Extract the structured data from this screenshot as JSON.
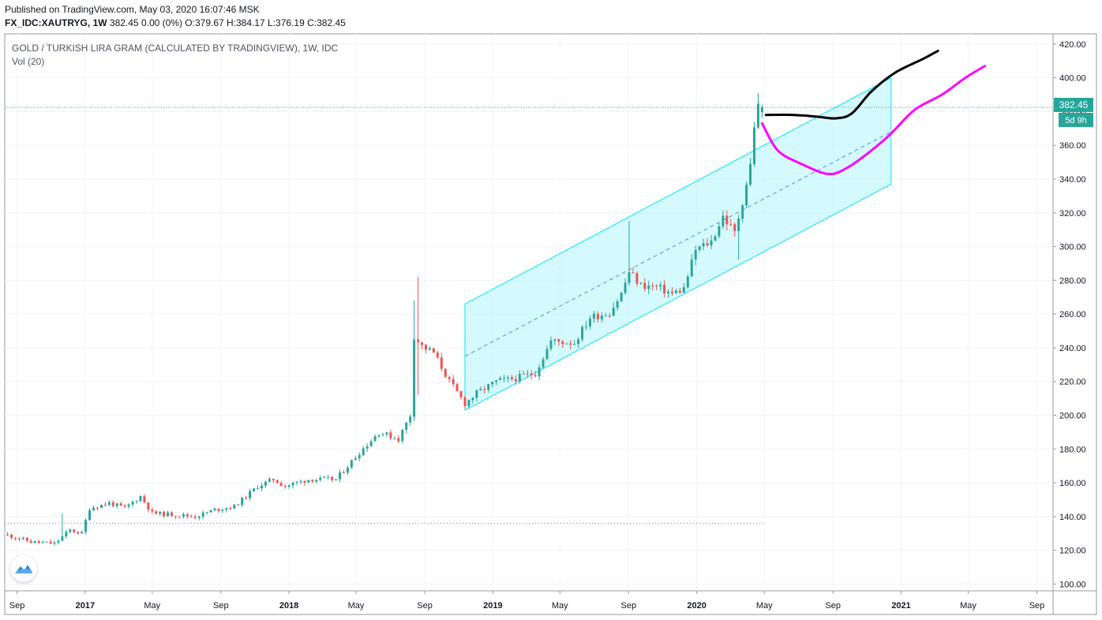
{
  "header": {
    "published": "Published on TradingView.com, May 03, 2020 16:07:46 MSK",
    "symbol": "FX_IDC:XAUTRYG, 1W",
    "quote": "382.45 0.00 (0%) O:379.67 H:384.17 L:376.19 C:382.45"
  },
  "legend": {
    "title": "GOLD / TURKISH LIRA GRAM (CALCULATED BY TRADINGVIEW), 1W, IDC",
    "volume": "Vol (20)"
  },
  "price_label": {
    "value": "382.45",
    "countdown": "5d 9h"
  },
  "colors": {
    "up": "#26a69a",
    "down": "#ef5350",
    "channel": "#00e5ff",
    "channel_fill": "#b2f5fb",
    "magenta": "#ff00ff",
    "black": "#000000",
    "grid": "#f0f3fa",
    "axis_text": "#131722",
    "price_line": "#26a69a"
  },
  "icons": {
    "logo": "tradingview-cloud-icon"
  },
  "chart_data": {
    "type": "candlestick",
    "ylim": [
      96,
      426
    ],
    "y_ticks": [
      100,
      120,
      140,
      160,
      180,
      200,
      220,
      240,
      260,
      280,
      300,
      320,
      340,
      360,
      380,
      400,
      420
    ],
    "y_tick_labels": [
      "100.00",
      "120.00",
      "140.00",
      "160.00",
      "180.00",
      "200.00",
      "220.00",
      "240.00",
      "260.00",
      "280.00",
      "300.00",
      "320.00",
      "340.00",
      "360.00",
      "380.00",
      "400.00",
      "420.00"
    ],
    "x_range": [
      "2016-08-10",
      "2021-09-30"
    ],
    "x_ticks": [
      {
        "date": "2016-09-01",
        "label": "Sep",
        "bold": false
      },
      {
        "date": "2017-01-01",
        "label": "2017",
        "bold": true
      },
      {
        "date": "2017-05-01",
        "label": "May",
        "bold": false
      },
      {
        "date": "2017-09-01",
        "label": "Sep",
        "bold": false
      },
      {
        "date": "2018-01-01",
        "label": "2018",
        "bold": true
      },
      {
        "date": "2018-05-01",
        "label": "May",
        "bold": false
      },
      {
        "date": "2018-09-01",
        "label": "Sep",
        "bold": false
      },
      {
        "date": "2019-01-01",
        "label": "2019",
        "bold": true
      },
      {
        "date": "2019-05-01",
        "label": "May",
        "bold": false
      },
      {
        "date": "2019-09-01",
        "label": "Sep",
        "bold": false
      },
      {
        "date": "2020-01-01",
        "label": "2020",
        "bold": true
      },
      {
        "date": "2020-05-01",
        "label": "May",
        "bold": false
      },
      {
        "date": "2020-09-01",
        "label": "Sep",
        "bold": false
      },
      {
        "date": "2021-01-01",
        "label": "2021",
        "bold": true
      },
      {
        "date": "2021-05-01",
        "label": "May",
        "bold": false
      },
      {
        "date": "2021-09-01",
        "label": "Sep",
        "bold": false
      }
    ],
    "last_price": 382.45,
    "last_ohlc": {
      "o": 379.67,
      "h": 384.17,
      "l": 376.19,
      "c": 382.45
    },
    "first_candle": "2016-08-15",
    "close_path": [
      [
        "2016-08-15",
        129
      ],
      [
        "2016-09-26",
        125
      ],
      [
        "2016-11-07",
        124
      ],
      [
        "2016-12-05",
        132
      ],
      [
        "2016-12-26",
        130
      ],
      [
        "2017-01-09",
        145
      ],
      [
        "2017-02-13",
        148
      ],
      [
        "2017-03-13",
        145
      ],
      [
        "2017-04-10",
        152
      ],
      [
        "2017-05-01",
        142
      ],
      [
        "2017-06-12",
        141
      ],
      [
        "2017-07-17",
        140
      ],
      [
        "2017-08-21",
        144
      ],
      [
        "2017-09-25",
        146
      ],
      [
        "2017-11-06",
        158
      ],
      [
        "2017-12-04",
        162
      ],
      [
        "2017-12-25",
        158
      ],
      [
        "2018-02-05",
        162
      ],
      [
        "2018-03-26",
        162
      ],
      [
        "2018-05-07",
        178
      ],
      [
        "2018-06-11",
        190
      ],
      [
        "2018-07-16",
        186
      ],
      [
        "2018-08-06",
        200
      ],
      [
        "2018-08-13",
        247
      ],
      [
        "2018-08-27",
        241
      ],
      [
        "2018-09-17",
        237
      ],
      [
        "2018-10-15",
        220
      ],
      [
        "2018-11-12",
        207
      ],
      [
        "2018-12-03",
        213
      ],
      [
        "2019-01-07",
        220
      ],
      [
        "2019-02-11",
        222
      ],
      [
        "2019-03-18",
        225
      ],
      [
        "2019-04-15",
        244
      ],
      [
        "2019-05-27",
        243
      ],
      [
        "2019-06-24",
        258
      ],
      [
        "2019-07-29",
        261
      ],
      [
        "2019-08-19",
        272
      ],
      [
        "2019-09-02",
        285
      ],
      [
        "2019-09-23",
        277
      ],
      [
        "2019-10-21",
        276
      ],
      [
        "2019-11-18",
        272
      ],
      [
        "2019-12-09",
        275
      ],
      [
        "2019-12-30",
        298
      ],
      [
        "2020-01-27",
        303
      ],
      [
        "2020-02-17",
        318
      ],
      [
        "2020-03-09",
        308
      ],
      [
        "2020-03-23",
        327
      ],
      [
        "2020-04-06",
        348
      ],
      [
        "2020-04-13",
        372
      ],
      [
        "2020-04-20",
        383
      ],
      [
        "2020-04-27",
        382.45
      ]
    ],
    "spikes": [
      {
        "date": "2016-11-21",
        "h": 142
      },
      {
        "date": "2018-08-13",
        "h": 268
      },
      {
        "date": "2018-08-20",
        "h": 282,
        "l": 212
      },
      {
        "date": "2019-09-02",
        "h": 315
      },
      {
        "date": "2020-03-16",
        "l": 292
      },
      {
        "date": "2020-04-20",
        "h": 391
      }
    ],
    "regression_channel": {
      "start": "2018-11-12",
      "end": "2020-12-14",
      "upper": [
        266,
        400
      ],
      "mid": [
        235,
        368
      ],
      "lower": [
        203,
        337
      ]
    },
    "dotted_reference": {
      "value": 136,
      "start": "2016-08-10",
      "end": "2020-05-01"
    },
    "projection_black": [
      [
        "2020-05-04",
        378
      ],
      [
        "2020-06-22",
        378
      ],
      [
        "2020-08-03",
        377
      ],
      [
        "2020-09-07",
        376
      ],
      [
        "2020-10-05",
        379
      ],
      [
        "2020-11-09",
        392
      ],
      [
        "2020-12-21",
        403
      ],
      [
        "2021-02-08",
        411
      ],
      [
        "2021-03-08",
        416
      ]
    ],
    "projection_magenta": [
      [
        "2020-04-27",
        373
      ],
      [
        "2020-05-25",
        357
      ],
      [
        "2020-07-06",
        349
      ],
      [
        "2020-08-24",
        343
      ],
      [
        "2020-09-28",
        347
      ],
      [
        "2020-11-09",
        357
      ],
      [
        "2020-12-14",
        367
      ],
      [
        "2021-01-25",
        381
      ],
      [
        "2021-03-15",
        390
      ],
      [
        "2021-04-26",
        400
      ],
      [
        "2021-05-31",
        407
      ]
    ]
  }
}
